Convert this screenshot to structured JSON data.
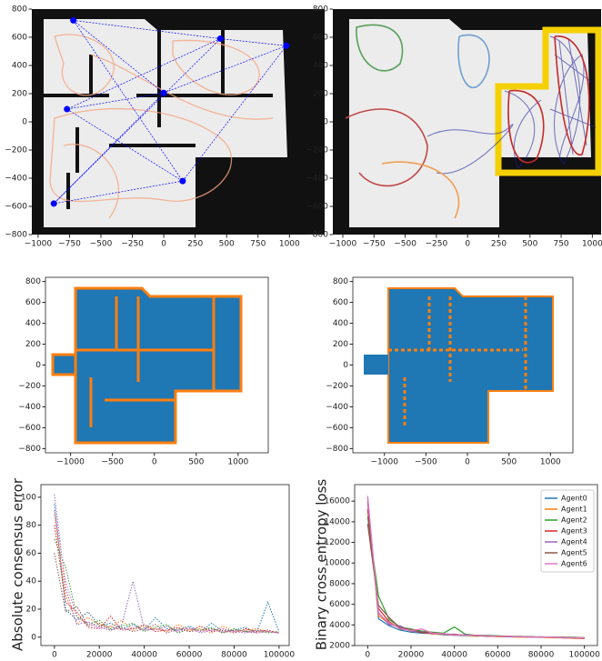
{
  "chart_data": [
    {
      "type": "map",
      "xlim": [
        -1050,
        1280
      ],
      "ylim": [
        -800,
        800
      ],
      "xticks": [
        {
          "value": -1000,
          "label": "−1000"
        },
        {
          "value": -750,
          "label": "−750"
        },
        {
          "value": -500,
          "label": "−500"
        },
        {
          "value": -250,
          "label": "−250"
        },
        0,
        250,
        500,
        750,
        1000
      ],
      "yticks": [
        {
          "value": -800,
          "label": "−800"
        },
        {
          "value": -600,
          "label": "−600"
        },
        {
          "value": -400,
          "label": "−400"
        },
        {
          "value": -200,
          "label": "−200"
        },
        0,
        200,
        400,
        600,
        800
      ],
      "series": [
        {
          "color": "#0000ff",
          "x": [
            -720,
            450,
            975,
            0,
            -770,
            150,
            -875
          ],
          "y": [
            720,
            590,
            540,
            205,
            90,
            -420,
            -580
          ]
        }
      ]
    },
    {
      "type": "map",
      "xlim": [
        -1080,
        1070
      ],
      "ylim": [
        -800,
        800
      ],
      "xticks": [
        {
          "value": -1000,
          "label": "−1000"
        },
        {
          "value": -750,
          "label": "−750"
        },
        {
          "value": -500,
          "label": "−500"
        },
        {
          "value": -250,
          "label": "−250"
        },
        0,
        250,
        500,
        750,
        1000
      ],
      "yticks": [
        {
          "value": -800,
          "label": "−800"
        },
        {
          "value": -600,
          "label": "−600"
        },
        {
          "value": -400,
          "label": "−400"
        },
        {
          "value": -200,
          "label": "−200"
        },
        0,
        200,
        400,
        600,
        800
      ]
    },
    {
      "type": "scatter",
      "xlim": [
        -1300,
        1360
      ],
      "ylim": [
        -840,
        840
      ],
      "xticks": [
        {
          "value": -1000,
          "label": "−1000"
        },
        {
          "value": -500,
          "label": "−500"
        },
        0,
        500,
        1000
      ],
      "yticks": [
        {
          "value": -800,
          "label": "−800"
        },
        {
          "value": -600,
          "label": "−600"
        },
        {
          "value": -400,
          "label": "−400"
        },
        {
          "value": -200,
          "label": "−200"
        },
        0,
        200,
        400,
        600,
        800
      ]
    },
    {
      "type": "scatter",
      "xlim": [
        -1380,
        1270
      ],
      "ylim": [
        -840,
        840
      ],
      "xticks": [
        {
          "value": -1000,
          "label": "−1000"
        },
        {
          "value": -500,
          "label": "−500"
        },
        0,
        500,
        1000
      ],
      "yticks": [
        {
          "value": -800,
          "label": "−800"
        },
        {
          "value": -600,
          "label": "−600"
        },
        {
          "value": -400,
          "label": "−400"
        },
        {
          "value": -200,
          "label": "−200"
        },
        0,
        200,
        400,
        600,
        800
      ]
    },
    {
      "type": "line",
      "y_label": "Absolute consensus error",
      "linestyle": "dotted",
      "xlim": [
        -6000,
        104500
      ],
      "ylim": [
        -6,
        109
      ],
      "xticks": [
        0,
        20000,
        40000,
        60000,
        80000,
        100000
      ],
      "yticks": [
        0,
        20,
        40,
        60,
        80,
        100
      ],
      "x": [
        0,
        5000,
        10000,
        15000,
        20000,
        25000,
        30000,
        35000,
        40000,
        45000,
        50000,
        55000,
        60000,
        65000,
        70000,
        75000,
        80000,
        85000,
        90000,
        95000,
        100000
      ],
      "series": [
        {
          "color": "#1f77b4",
          "values": [
            95,
            20,
            12,
            18,
            8,
            10,
            6,
            9,
            5,
            14,
            6,
            5,
            8,
            4,
            10,
            4,
            5,
            7,
            3,
            25,
            4
          ]
        },
        {
          "color": "#ff7f0e",
          "values": [
            88,
            30,
            10,
            14,
            9,
            7,
            12,
            5,
            8,
            6,
            4,
            9,
            5,
            6,
            3,
            8,
            4,
            5,
            6,
            4,
            3
          ]
        },
        {
          "color": "#2ca02c",
          "values": [
            70,
            50,
            15,
            9,
            12,
            6,
            8,
            10,
            4,
            7,
            9,
            3,
            6,
            5,
            7,
            3,
            6,
            4,
            5,
            3,
            4
          ]
        },
        {
          "color": "#d62728",
          "values": [
            80,
            25,
            18,
            7,
            6,
            15,
            5,
            6,
            9,
            4,
            5,
            7,
            4,
            8,
            4,
            5,
            3,
            6,
            4,
            5,
            3
          ]
        },
        {
          "color": "#9467bd",
          "values": [
            102,
            35,
            9,
            11,
            7,
            5,
            9,
            40,
            6,
            5,
            8,
            4,
            7,
            3,
            5,
            6,
            4,
            3,
            5,
            4,
            3
          ]
        },
        {
          "color": "#8c564b",
          "values": [
            60,
            18,
            22,
            8,
            10,
            5,
            7,
            4,
            6,
            9,
            3,
            6,
            4,
            5,
            6,
            3,
            5,
            4,
            3,
            4,
            3
          ]
        },
        {
          "color": "#e377c2",
          "values": [
            90,
            40,
            14,
            10,
            6,
            8,
            5,
            7,
            5,
            6,
            5,
            4,
            6,
            4,
            5,
            4,
            4,
            5,
            3,
            4,
            3
          ]
        }
      ]
    },
    {
      "type": "line",
      "y_label": "Binary cross entropy loss",
      "legend": "upper right",
      "xlim": [
        -6000,
        106000
      ],
      "ylim": [
        2000,
        17600
      ],
      "xticks": [
        0,
        20000,
        40000,
        60000,
        80000,
        100000
      ],
      "yticks": [
        2000,
        4000,
        6000,
        8000,
        10000,
        12000,
        14000,
        16000
      ],
      "x": [
        0,
        5000,
        10000,
        15000,
        20000,
        25000,
        30000,
        35000,
        40000,
        45000,
        50000,
        55000,
        60000,
        65000,
        70000,
        75000,
        80000,
        85000,
        90000,
        95000,
        100000
      ],
      "series": [
        {
          "name": "Agent0",
          "color": "#1f77b4",
          "values": [
            16400,
            4600,
            3900,
            3500,
            3300,
            3200,
            3150,
            3050,
            3000,
            2950,
            2950,
            2900,
            2900,
            2850,
            2850,
            2800,
            2800,
            2800,
            2750,
            2750,
            2750
          ]
        },
        {
          "name": "Agent1",
          "color": "#ff7f0e",
          "values": [
            15800,
            4900,
            4100,
            3700,
            3400,
            3300,
            3100,
            3100,
            3000,
            3000,
            2900,
            2950,
            2850,
            2850,
            2800,
            2850,
            2800,
            2750,
            2750,
            2700,
            2700
          ]
        },
        {
          "name": "Agent2",
          "color": "#2ca02c",
          "values": [
            14500,
            6800,
            4500,
            3800,
            3600,
            3400,
            3300,
            3200,
            3800,
            3100,
            3000,
            3000,
            2950,
            2900,
            2900,
            2850,
            2850,
            2800,
            2800,
            2800,
            2750
          ]
        },
        {
          "name": "Agent3",
          "color": "#d62728",
          "values": [
            15200,
            5600,
            4300,
            3600,
            3500,
            3250,
            3200,
            3100,
            3050,
            3000,
            3000,
            2900,
            2900,
            2900,
            2850,
            2800,
            2800,
            2800,
            2750,
            2750,
            2700
          ]
        },
        {
          "name": "Agent4",
          "color": "#9467bd",
          "values": [
            16000,
            5200,
            4000,
            3900,
            3400,
            3350,
            3150,
            3150,
            3000,
            3050,
            2950,
            2950,
            2900,
            2850,
            2850,
            2850,
            2800,
            2800,
            2750,
            2750,
            2750
          ]
        },
        {
          "name": "Agent5",
          "color": "#8c564b",
          "values": [
            13800,
            5900,
            4700,
            3700,
            3550,
            3300,
            3250,
            3100,
            3100,
            3000,
            2950,
            2950,
            2900,
            2900,
            2850,
            2850,
            2800,
            2800,
            2800,
            2750,
            2750
          ]
        },
        {
          "name": "Agent6",
          "color": "#e377c2",
          "values": [
            16500,
            5100,
            4200,
            3650,
            3450,
            3600,
            3200,
            3150,
            3050,
            3000,
            3000,
            2950,
            2900,
            2900,
            2850,
            2800,
            2850,
            2800,
            2750,
            2750,
            2750
          ]
        }
      ]
    }
  ]
}
